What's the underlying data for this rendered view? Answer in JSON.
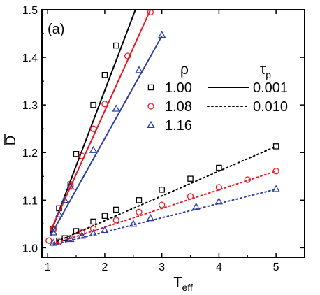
{
  "chart_data": {
    "type": "scatter",
    "panel_label": "(a)",
    "xlabel": "T",
    "xlabel_sub": "eff",
    "ylabel": "D",
    "xlim": [
      0.9,
      5.5
    ],
    "ylim": [
      0.98,
      1.5
    ],
    "xticks": [
      1,
      2,
      3,
      4,
      5
    ],
    "xtick_labels": [
      "1",
      "2",
      "3",
      "4",
      "5"
    ],
    "yticks": [
      1.0,
      1.1,
      1.2,
      1.3,
      1.4,
      1.5
    ],
    "ytick_labels": [
      "1.0",
      "1.1",
      "1.2",
      "1.3",
      "1.4",
      "1.5"
    ],
    "grid": false,
    "legend_rho": {
      "title": "ρ",
      "entries": [
        {
          "label": "1.00",
          "color": "#000000",
          "marker": "square"
        },
        {
          "label": "1.08",
          "color": "#e8141e",
          "marker": "circle"
        },
        {
          "label": "1.16",
          "color": "#2b3da8",
          "marker": "triangle"
        }
      ]
    },
    "legend_tau": {
      "title": "τ",
      "title_sub": "p",
      "entries": [
        {
          "label": "0.001",
          "style": "solid"
        },
        {
          "label": "0.010",
          "style": "dotted"
        }
      ]
    },
    "series": [
      {
        "rho": "1.00",
        "tau_p": "0.001",
        "color": "#000000",
        "marker": "square",
        "line": "solid",
        "points": [
          [
            1.1,
            1.04
          ],
          [
            1.2,
            1.083
          ],
          [
            1.4,
            1.133
          ],
          [
            1.5,
            1.197
          ],
          [
            1.8,
            1.3
          ],
          [
            2.0,
            1.363
          ],
          [
            2.2,
            1.425
          ]
        ],
        "fit": [
          [
            1.05,
            1.03
          ],
          [
            2.6,
            1.52
          ]
        ]
      },
      {
        "rho": "1.08",
        "tau_p": "0.001",
        "color": "#e8141e",
        "marker": "circle",
        "line": "solid",
        "points": [
          [
            1.02,
            1.015
          ],
          [
            1.1,
            1.04
          ],
          [
            1.4,
            1.13
          ],
          [
            1.6,
            1.193
          ],
          [
            1.8,
            1.25
          ],
          [
            2.0,
            1.302
          ],
          [
            2.4,
            1.403
          ],
          [
            2.8,
            1.495
          ]
        ],
        "fit": [
          [
            1.05,
            1.035
          ],
          [
            2.8,
            1.5
          ]
        ]
      },
      {
        "rho": "1.16",
        "tau_p": "0.001",
        "color": "#2b3da8",
        "marker": "triangle",
        "line": "solid",
        "points": [
          [
            1.1,
            1.032
          ],
          [
            1.2,
            1.07
          ],
          [
            1.3,
            1.1
          ],
          [
            1.4,
            1.128
          ],
          [
            1.8,
            1.205
          ],
          [
            2.2,
            1.292
          ],
          [
            2.6,
            1.373
          ],
          [
            3.0,
            1.447
          ]
        ],
        "fit": [
          [
            1.05,
            1.025
          ],
          [
            3.0,
            1.445
          ]
        ]
      },
      {
        "rho": "1.00",
        "tau_p": "0.010",
        "color": "#000000",
        "marker": "square",
        "line": "dotted",
        "points": [
          [
            1.2,
            1.015
          ],
          [
            1.3,
            1.02
          ],
          [
            1.5,
            1.035
          ],
          [
            1.8,
            1.055
          ],
          [
            2.0,
            1.067
          ],
          [
            2.2,
            1.08
          ],
          [
            2.6,
            1.1
          ],
          [
            3.0,
            1.122
          ],
          [
            3.5,
            1.145
          ],
          [
            4.0,
            1.168
          ],
          [
            5.0,
            1.213
          ]
        ],
        "fit": [
          [
            1.1,
            1.01
          ],
          [
            5.0,
            1.213
          ]
        ]
      },
      {
        "rho": "1.08",
        "tau_p": "0.010",
        "color": "#e8141e",
        "marker": "circle",
        "line": "dotted",
        "points": [
          [
            1.2,
            1.012
          ],
          [
            1.4,
            1.02
          ],
          [
            1.6,
            1.032
          ],
          [
            1.8,
            1.04
          ],
          [
            2.2,
            1.058
          ],
          [
            2.6,
            1.075
          ],
          [
            3.0,
            1.09
          ],
          [
            3.5,
            1.108
          ],
          [
            4.0,
            1.127
          ],
          [
            4.5,
            1.143
          ],
          [
            5.0,
            1.161
          ]
        ],
        "fit": [
          [
            1.1,
            1.008
          ],
          [
            5.0,
            1.161
          ]
        ]
      },
      {
        "rho": "1.16",
        "tau_p": "0.010",
        "color": "#2b3da8",
        "marker": "triangle",
        "line": "dotted",
        "points": [
          [
            1.1,
            1.01
          ],
          [
            1.4,
            1.018
          ],
          [
            1.6,
            1.025
          ],
          [
            1.8,
            1.03
          ],
          [
            2.0,
            1.037
          ],
          [
            2.5,
            1.05
          ],
          [
            2.8,
            1.062
          ],
          [
            3.6,
            1.086
          ],
          [
            4.0,
            1.097
          ],
          [
            5.0,
            1.123
          ]
        ],
        "fit": [
          [
            1.1,
            1.006
          ],
          [
            5.0,
            1.123
          ]
        ]
      }
    ]
  }
}
